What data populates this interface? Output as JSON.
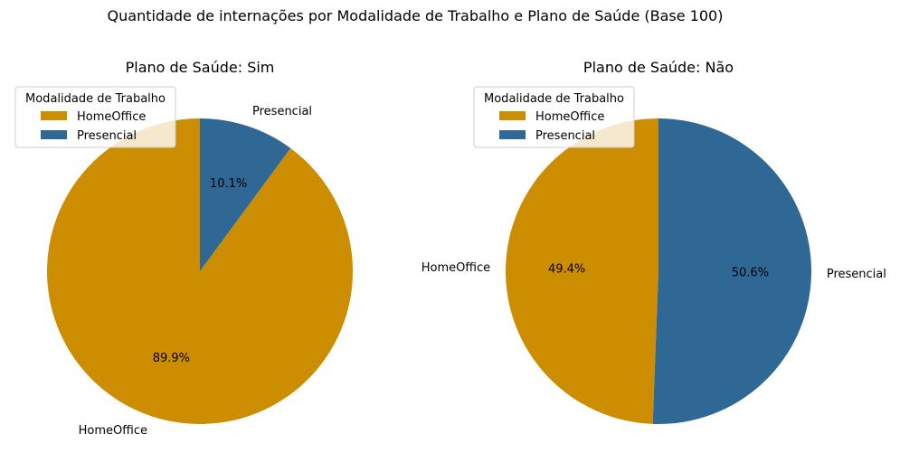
{
  "figure": {
    "suptitle": "Quantidade de internações por Modalidade de Trabalho e Plano de Saúde (Base 100)"
  },
  "colors": {
    "HomeOffice": "#CC8E00",
    "Presencial": "#306895"
  },
  "chart_data": [
    {
      "type": "pie",
      "title": "Plano de Saúde: Sim",
      "labels": [
        "HomeOffice",
        "Presencial"
      ],
      "values": [
        89.9,
        10.1
      ],
      "autopct": [
        "89.9%",
        "10.1%"
      ],
      "start_angle_deg": 90,
      "direction": "counterclockwise",
      "legend": {
        "title": "Modalidade de Trabalho",
        "entries": [
          "HomeOffice",
          "Presencial"
        ],
        "placement": "upper-left"
      }
    },
    {
      "type": "pie",
      "title": "Plano de Saúde: Não",
      "labels": [
        "HomeOffice",
        "Presencial"
      ],
      "values": [
        49.4,
        50.6
      ],
      "autopct": [
        "49.4%",
        "50.6%"
      ],
      "start_angle_deg": 90,
      "direction": "counterclockwise",
      "legend": {
        "title": "Modalidade de Trabalho",
        "entries": [
          "HomeOffice",
          "Presencial"
        ],
        "placement": "upper-left"
      }
    }
  ]
}
